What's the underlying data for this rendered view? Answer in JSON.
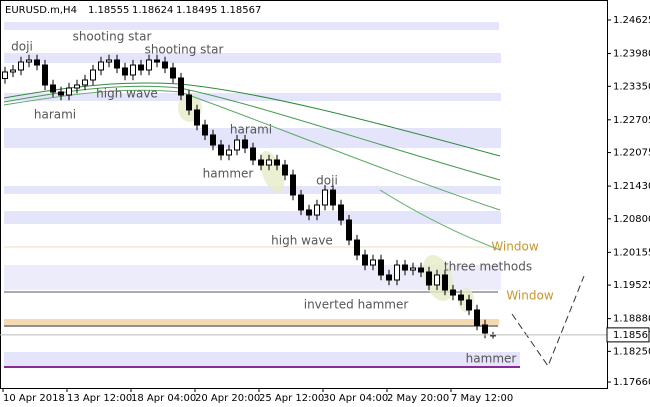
{
  "chart_data": {
    "type": "candlestick",
    "symbol": "EURUSD.m,H4",
    "categories": [
      "10 Apr 2018",
      null,
      null,
      null,
      null,
      null,
      null,
      null,
      "13 Apr 12:00",
      null,
      null,
      null,
      null,
      null,
      null,
      null,
      "18 Apr 04:00",
      null,
      null,
      null,
      null,
      null,
      null,
      null,
      "20 Apr 20:00",
      null,
      null,
      null,
      null,
      null,
      null,
      null,
      "25 Apr 12:00",
      null,
      null,
      null,
      null,
      null,
      null,
      null,
      "30 Apr 04:00",
      null,
      null,
      null,
      null,
      null,
      null,
      null,
      "2 May 20:00",
      null,
      null,
      null,
      null,
      null,
      null,
      null,
      "7 May 12:00",
      null,
      null,
      null,
      null,
      null
    ],
    "open": [
      1.235,
      1.23625,
      1.23663,
      1.23817,
      1.23856,
      1.23759,
      1.23375,
      1.2324,
      1.23182,
      1.23317,
      1.23375,
      1.23471,
      1.23663,
      1.23817,
      1.23856,
      1.23702,
      1.23567,
      1.23759,
      1.23663,
      1.23856,
      1.23817,
      1.23702,
      1.23509,
      1.23182,
      1.22894,
      1.22605,
      1.22413,
      1.2222,
      1.22028,
      1.22124,
      1.22316,
      1.22163,
      1.21932,
      1.21835,
      1.21932,
      1.21835,
      1.21643,
      1.21258,
      1.2097,
      1.20873,
      1.21066,
      1.21354,
      1.21066,
      1.20777,
      1.20392,
      1.20104,
      1.19911,
      1.20008,
      1.19719,
      1.19623,
      1.19911,
      1.19815,
      1.19854,
      1.19777,
      1.19527,
      1.19719,
      1.1943,
      1.19334,
      1.19238,
      1.19046,
      1.18757,
      1.18555
    ],
    "high": [
      1.23725,
      1.23763,
      1.23917,
      1.23956,
      1.23956,
      1.23859,
      1.23475,
      1.2334,
      1.23417,
      1.23475,
      1.23571,
      1.23763,
      1.23917,
      1.23956,
      1.23956,
      1.23802,
      1.23859,
      1.23859,
      1.23956,
      1.23956,
      1.23917,
      1.23802,
      1.23609,
      1.23282,
      1.22994,
      1.22705,
      1.22513,
      1.2232,
      1.22224,
      1.22416,
      1.22416,
      1.22263,
      1.22032,
      1.22032,
      1.22032,
      1.21935,
      1.21743,
      1.21358,
      1.2107,
      1.21166,
      1.21454,
      1.21454,
      1.21166,
      1.20877,
      1.20492,
      1.20204,
      1.20108,
      1.20108,
      1.19819,
      1.20011,
      1.20011,
      1.19954,
      1.19954,
      1.19877,
      1.19819,
      1.19819,
      1.1953,
      1.19434,
      1.19338,
      1.19146,
      1.18857,
      1.18624
    ],
    "low": [
      1.234,
      1.23525,
      1.23563,
      1.23717,
      1.23659,
      1.23275,
      1.2314,
      1.23082,
      1.23082,
      1.23217,
      1.23275,
      1.23371,
      1.23563,
      1.23717,
      1.23602,
      1.23467,
      1.23467,
      1.23563,
      1.23563,
      1.23717,
      1.23602,
      1.23409,
      1.23082,
      1.22794,
      1.22505,
      1.22313,
      1.2212,
      1.21928,
      1.21928,
      1.22024,
      1.22063,
      1.21832,
      1.21735,
      1.21735,
      1.21735,
      1.21543,
      1.21158,
      1.2087,
      1.20773,
      1.20773,
      1.20966,
      1.20966,
      1.20677,
      1.20292,
      1.20004,
      1.19811,
      1.19811,
      1.19619,
      1.19523,
      1.19523,
      1.19715,
      1.19715,
      1.19677,
      1.19427,
      1.19427,
      1.1933,
      1.19234,
      1.19138,
      1.18946,
      1.18657,
      1.18503,
      1.18495
    ],
    "close": [
      1.23625,
      1.23663,
      1.23817,
      1.23856,
      1.23759,
      1.23375,
      1.2324,
      1.23182,
      1.23317,
      1.23375,
      1.23471,
      1.23663,
      1.23817,
      1.23856,
      1.23702,
      1.23567,
      1.23759,
      1.23663,
      1.23856,
      1.23817,
      1.23702,
      1.23509,
      1.23182,
      1.22894,
      1.22605,
      1.22413,
      1.2222,
      1.22028,
      1.22124,
      1.22316,
      1.22163,
      1.21932,
      1.21835,
      1.21932,
      1.21835,
      1.21643,
      1.21258,
      1.2097,
      1.20873,
      1.21066,
      1.21354,
      1.21066,
      1.20777,
      1.20392,
      1.20104,
      1.19911,
      1.20008,
      1.19719,
      1.19623,
      1.19911,
      1.19815,
      1.19854,
      1.19777,
      1.19527,
      1.19719,
      1.1943,
      1.19334,
      1.19238,
      1.19046,
      1.18757,
      1.18603,
      1.18567
    ],
    "ylim": [
      1.17545,
      1.2501
    ],
    "yticks": [
      1.24625,
      {
        "value": 1.2398,
        "label": "1.23980"
      },
      {
        "value": 1.2335,
        "label": "1.23350"
      },
      1.22705,
      1.22075,
      {
        "value": 1.2143,
        "label": "1.21430"
      },
      {
        "value": 1.208,
        "label": "1.20800"
      },
      1.20155,
      1.19525,
      {
        "value": 1.1888,
        "label": "1.18880"
      },
      {
        "value": 1.1825,
        "label": "1.18250"
      },
      {
        "value": 1.1766,
        "label": "1.17660"
      }
    ],
    "annotations": [
      "doji",
      "shooting star",
      "shooting star",
      "high wave",
      "harami",
      "harami",
      "hammer",
      "doji",
      "high wave",
      "three methods",
      "inverted hammer",
      "hammer",
      "Window",
      "Window"
    ]
  }
}
